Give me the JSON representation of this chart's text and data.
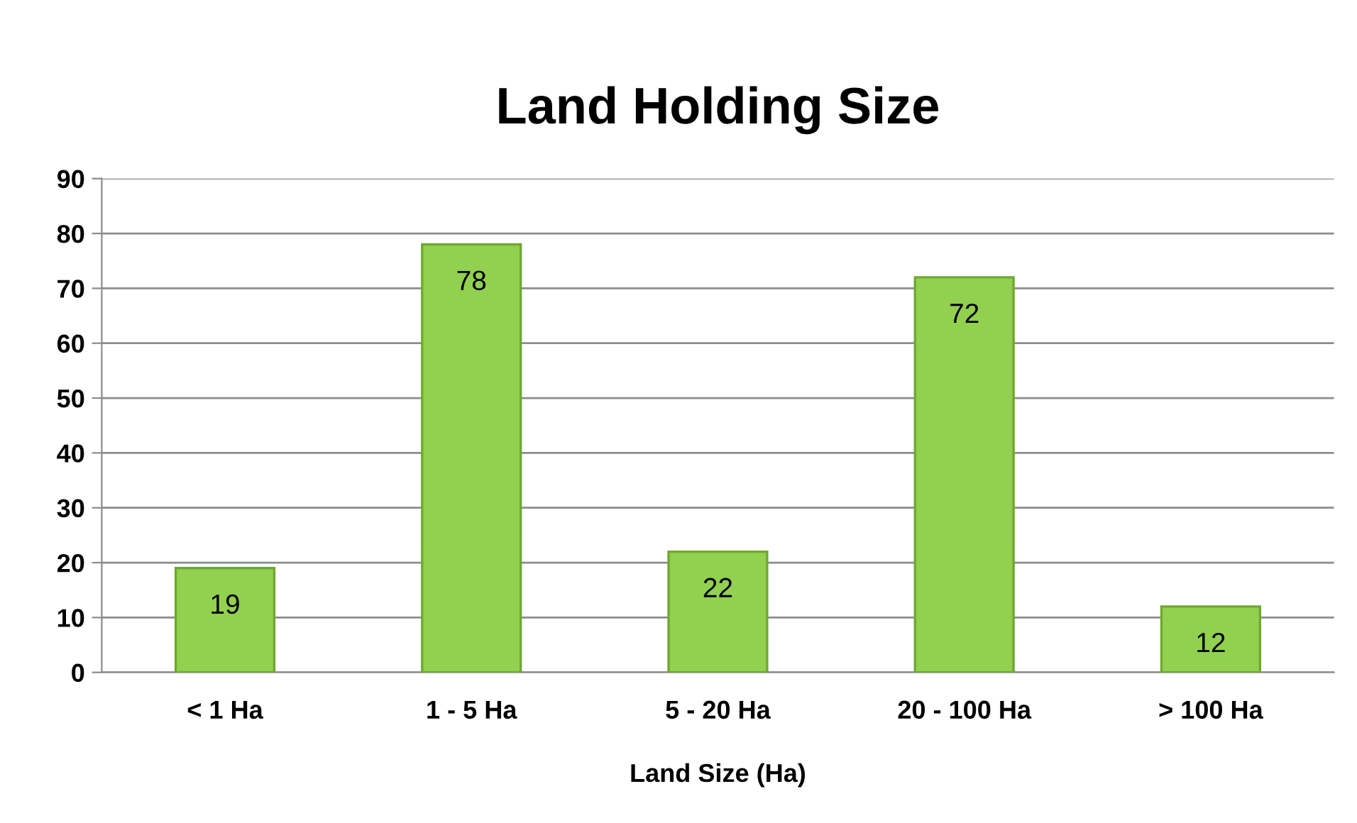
{
  "chart_data": {
    "type": "bar",
    "title": "Land Holding Size",
    "xlabel": "Land Size (Ha)",
    "categories": [
      "< 1 Ha",
      "1 - 5 Ha",
      "5 - 20 Ha",
      "20 - 100 Ha",
      "> 100 Ha"
    ],
    "values": [
      19,
      78,
      22,
      72,
      12
    ],
    "color": "#92d050",
    "ylim": [
      0,
      90
    ],
    "yticks": [
      0,
      10,
      20,
      30,
      40,
      50,
      60,
      70,
      80,
      90
    ],
    "grid": "y",
    "data_labels": true
  }
}
